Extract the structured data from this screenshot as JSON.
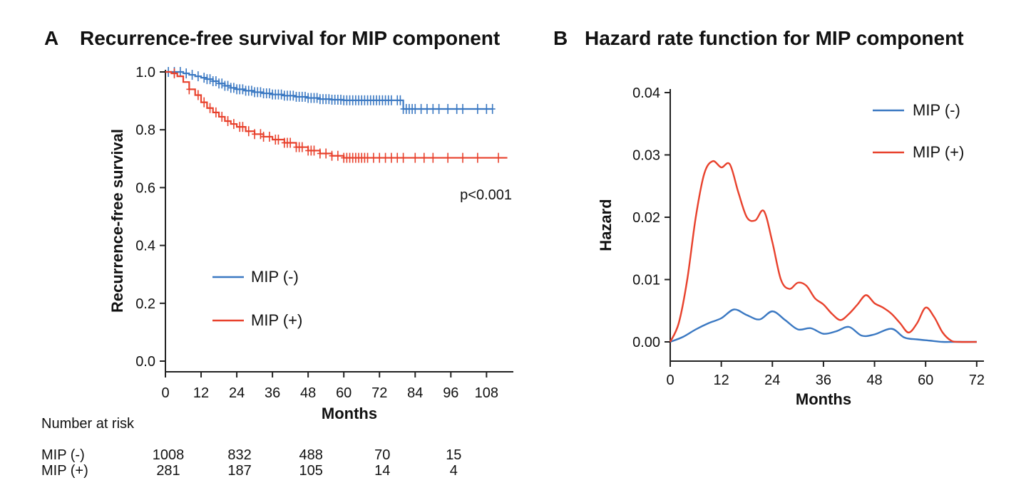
{
  "chart_data": [
    {
      "panel": "A",
      "type": "line",
      "title": "Recurrence-free survival for MIP component",
      "xlabel": "Months",
      "ylabel": "Recurrence-free survival",
      "xlim": [
        0,
        115
      ],
      "ylim": [
        0,
        1
      ],
      "xticks": [
        "0",
        "12",
        "24",
        "36",
        "48",
        "60",
        "72",
        "84",
        "96",
        "108"
      ],
      "yticks": [
        "0.0",
        "0.2",
        "0.4",
        "0.6",
        "0.8",
        "1.0"
      ],
      "annotation": "p<0.001",
      "legend_position": "center-left",
      "grid": false,
      "series": [
        {
          "name": "MIP (-)",
          "color": "#3a78c2",
          "x": [
            0,
            6,
            8,
            10,
            12,
            14,
            16,
            18,
            20,
            22,
            24,
            27,
            30,
            33,
            36,
            40,
            44,
            48,
            52,
            56,
            60,
            64,
            68,
            72,
            77,
            80,
            90,
            100,
            110
          ],
          "y": [
            1.0,
            0.995,
            0.99,
            0.985,
            0.98,
            0.975,
            0.968,
            0.96,
            0.952,
            0.945,
            0.94,
            0.935,
            0.93,
            0.926,
            0.922,
            0.918,
            0.914,
            0.91,
            0.906,
            0.904,
            0.902,
            0.902,
            0.902,
            0.902,
            0.902,
            0.872,
            0.872,
            0.872,
            0.872
          ],
          "censor_x": [
            1,
            3,
            5,
            7,
            9,
            11,
            13,
            14,
            15,
            16,
            17,
            18,
            19,
            20,
            21,
            22,
            23,
            24,
            25,
            26,
            27,
            28,
            29,
            30,
            31,
            32,
            33,
            34,
            35,
            36,
            37,
            38,
            39,
            40,
            41,
            42,
            43,
            44,
            45,
            46,
            47,
            48,
            49,
            50,
            51,
            52,
            53,
            54,
            55,
            56,
            57,
            58,
            59,
            60,
            61,
            62,
            63,
            64,
            65,
            66,
            67,
            68,
            69,
            70,
            71,
            72,
            73,
            74,
            75,
            76,
            78,
            79,
            80,
            81,
            82,
            83,
            84,
            86,
            88,
            90,
            92,
            95,
            98,
            100,
            105,
            108,
            110
          ]
        },
        {
          "name": "MIP (+)",
          "color": "#e8412c",
          "x": [
            0,
            2,
            4,
            6,
            8,
            10,
            12,
            14,
            16,
            18,
            20,
            22,
            24,
            27,
            30,
            33,
            36,
            40,
            44,
            48,
            52,
            56,
            60,
            64,
            70,
            80,
            90,
            100,
            115
          ],
          "y": [
            1.0,
            0.995,
            0.985,
            0.965,
            0.94,
            0.92,
            0.895,
            0.875,
            0.86,
            0.845,
            0.83,
            0.82,
            0.81,
            0.795,
            0.785,
            0.776,
            0.766,
            0.755,
            0.74,
            0.728,
            0.718,
            0.71,
            0.703,
            0.703,
            0.703,
            0.703,
            0.703,
            0.703,
            0.703
          ],
          "censor_x": [
            3,
            8,
            11,
            13,
            15,
            17,
            19,
            21,
            23,
            25,
            26,
            28,
            30,
            32,
            33,
            35,
            37,
            38,
            40,
            41,
            42,
            44,
            45,
            46,
            48,
            49,
            50,
            52,
            54,
            56,
            58,
            60,
            61,
            62,
            63,
            64,
            65,
            66,
            67,
            68,
            70,
            72,
            74,
            76,
            78,
            80,
            84,
            87,
            90,
            95,
            100,
            105,
            112
          ]
        }
      ]
    },
    {
      "panel": "B",
      "type": "line",
      "title": "Hazard rate function for MIP component",
      "xlabel": "Months",
      "ylabel": "Hazard",
      "xlim": [
        0,
        73
      ],
      "ylim": [
        -0.003,
        0.04
      ],
      "xticks": [
        "0",
        "12",
        "24",
        "36",
        "48",
        "60",
        "72"
      ],
      "yticks": [
        "0.00",
        "0.01",
        "0.02",
        "0.03",
        "0.04"
      ],
      "legend_position": "top-right",
      "grid": false,
      "series": [
        {
          "name": "MIP (-)",
          "color": "#3a78c2",
          "x": [
            0,
            3,
            6,
            9,
            12,
            15,
            18,
            21,
            24,
            27,
            30,
            33,
            36,
            39,
            42,
            45,
            48,
            52,
            55,
            58,
            61,
            64,
            67,
            72
          ],
          "y": [
            0.0,
            0.0008,
            0.002,
            0.003,
            0.0038,
            0.0052,
            0.0043,
            0.0036,
            0.0049,
            0.0035,
            0.002,
            0.0022,
            0.0013,
            0.0017,
            0.0024,
            0.001,
            0.0012,
            0.0021,
            0.0007,
            0.0004,
            0.0002,
            0.0,
            0.0,
            0.0
          ]
        },
        {
          "name": "MIP (+)",
          "color": "#e8412c",
          "x": [
            0,
            2,
            4,
            6,
            8,
            10,
            12,
            14,
            16,
            18,
            20,
            22,
            24,
            26,
            28,
            30,
            32,
            34,
            36,
            38,
            40,
            42,
            44,
            46,
            48,
            50,
            52,
            54,
            56,
            58,
            60,
            62,
            64,
            66,
            68,
            72
          ],
          "y": [
            0.0,
            0.003,
            0.01,
            0.02,
            0.027,
            0.029,
            0.028,
            0.0285,
            0.024,
            0.02,
            0.0195,
            0.021,
            0.016,
            0.01,
            0.0085,
            0.0095,
            0.009,
            0.007,
            0.006,
            0.0045,
            0.0035,
            0.0045,
            0.006,
            0.0075,
            0.0062,
            0.0055,
            0.0045,
            0.003,
            0.0015,
            0.003,
            0.0055,
            0.004,
            0.0015,
            0.0002,
            0.0,
            0.0
          ]
        }
      ]
    }
  ],
  "risk_table": {
    "title": "Number at risk",
    "rows": [
      {
        "label": "MIP (-)",
        "values": [
          "1008",
          "832",
          "488",
          "70",
          "15"
        ]
      },
      {
        "label": "MIP (+)",
        "values": [
          "281",
          "187",
          "105",
          "14",
          "4"
        ]
      }
    ]
  }
}
